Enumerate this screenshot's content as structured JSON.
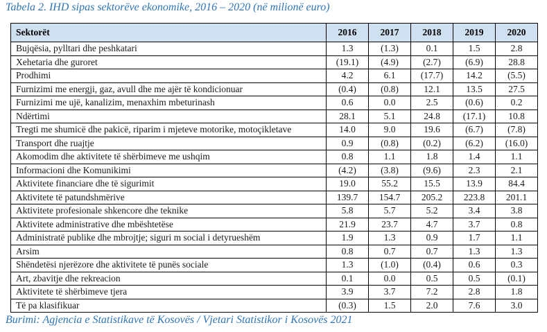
{
  "title": "Tabela 2. IHD sipas sektorëve ekonomike, 2016 – 2020 (në milionë euro)",
  "source": "Burimi: Agjencia e Statistikave të Kosovës / Vjetari Statistikor i Kosovës 2021",
  "colors": {
    "title_text": "#2e74b5",
    "header_bg": "#cfe0f0",
    "border": "#000000",
    "body_text": "#1a1a1a"
  },
  "table": {
    "columns": [
      "Sektorët",
      "2016",
      "2017",
      "2018",
      "2019",
      "2020"
    ],
    "rows": [
      {
        "label": "Bujqësia, pylltari dhe peshkatari",
        "values": [
          "1.3",
          "(1.3)",
          "0.1",
          "1.5",
          "2.8"
        ]
      },
      {
        "label": "Xehetaria dhe guroret",
        "values": [
          "(19.1)",
          "(4.9)",
          "(2.7)",
          "(6.9)",
          "28.8"
        ]
      },
      {
        "label": "Prodhimi",
        "values": [
          "4.2",
          "6.1",
          "(17.7)",
          "14.2",
          "(5.5)"
        ]
      },
      {
        "label": "Furnizimi me energji, gaz, avull dhe me ajër të kondicionuar",
        "values": [
          "(0.4)",
          "(0.8)",
          "12.1",
          "13.5",
          "27.5"
        ]
      },
      {
        "label": "Furnizimi me ujë, kanalizim, menaxhim mbeturinash",
        "values": [
          "0.6",
          "0.0",
          "2.5",
          "(0.6)",
          "0.2"
        ]
      },
      {
        "label": "Ndërtimi",
        "values": [
          "28.1",
          "5.1",
          "24.8",
          "(17.1)",
          "10.8"
        ]
      },
      {
        "label": "Tregti me shumicë dhe pakicë, riparim i mjeteve motorike, motoçikletave",
        "values": [
          "14.0",
          "9.0",
          "19.6",
          "(6.7)",
          "(7.8)"
        ]
      },
      {
        "label": "Transport dhe ruajtje",
        "values": [
          "0.9",
          "(0.8)",
          "(0.2)",
          "(6.2)",
          "(16.0)"
        ]
      },
      {
        "label": "Akomodim dhe aktivitete të shërbimeve me ushqim",
        "values": [
          "0.8",
          "1.1",
          "1.8",
          "1.4",
          "1.1"
        ]
      },
      {
        "label": "Informacioni dhe Komunikimi",
        "values": [
          "(4.2)",
          "(3.8)",
          "(9.6)",
          "2.3",
          "2.1"
        ]
      },
      {
        "label": "Aktivitete financiare dhe të sigurimit",
        "values": [
          "19.0",
          "55.2",
          "15.5",
          "13.9",
          "84.4"
        ]
      },
      {
        "label": "Aktivitete të patundshmërive",
        "values": [
          "139.7",
          "154.7",
          "205.2",
          "223.8",
          "201.1"
        ]
      },
      {
        "label": "Aktivitete profesionale shkencore dhe teknike",
        "values": [
          "5.8",
          "5.7",
          "5.2",
          "3.4",
          "3.8"
        ]
      },
      {
        "label": "Aktivitete administrative dhe mbështetëse",
        "values": [
          "21.9",
          "23.7",
          "4.7",
          "3.7",
          "0.8"
        ]
      },
      {
        "label": "Administratë publike dhe mbrojtje; siguri m social i detyrueshëm",
        "values": [
          "1.9",
          "1.3",
          "0.9",
          "1.7",
          "1.1"
        ]
      },
      {
        "label": "Arsim",
        "values": [
          "0.8",
          "0.7",
          "0.7",
          "1.3",
          "1.3"
        ]
      },
      {
        "label": "Shëndetësi njerëzore dhe aktivitete të punës sociale",
        "values": [
          "1.3",
          "(1.0)",
          "(0.4)",
          "0.6",
          "0.3"
        ]
      },
      {
        "label": "Art, zbavitje dhe rekreacion",
        "values": [
          "0.1",
          "0.0",
          "0.5",
          "0.5",
          "(0.1)"
        ]
      },
      {
        "label": "Aktivitete të shërbimeve tjera",
        "values": [
          "3.9",
          "3.7",
          "7.2",
          "2.8",
          "1.8"
        ]
      },
      {
        "label": "Të pa klasifikuar",
        "values": [
          "(0.3)",
          "1.5",
          "2.0",
          "7.6",
          "3.0"
        ]
      }
    ]
  }
}
